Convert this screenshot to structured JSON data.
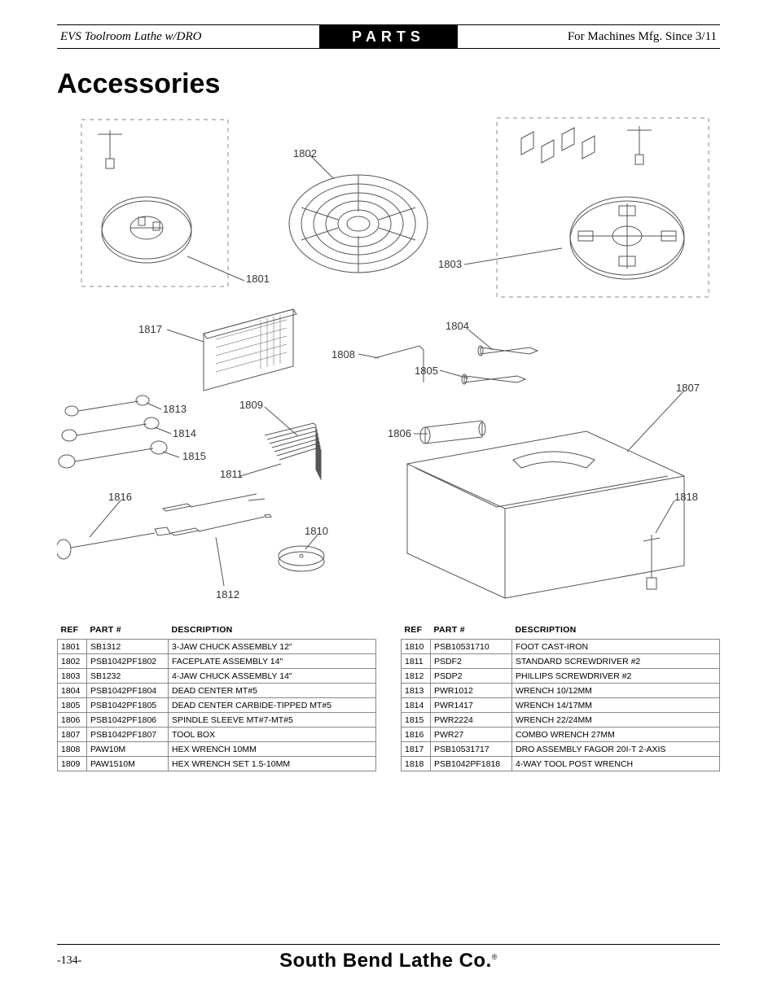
{
  "header": {
    "left": "EVS Toolroom Lathe w/DRO",
    "center": "PARTS",
    "right": "For Machines Mfg. Since 3/11"
  },
  "title": "Accessories",
  "callouts": {
    "c1801": "1801",
    "c1802": "1802",
    "c1803": "1803",
    "c1804": "1804",
    "c1805": "1805",
    "c1806": "1806",
    "c1807": "1807",
    "c1808": "1808",
    "c1809": "1809",
    "c1810": "1810",
    "c1811": "1811",
    "c1812": "1812",
    "c1813": "1813",
    "c1814": "1814",
    "c1815": "1815",
    "c1816": "1816",
    "c1817": "1817",
    "c1818": "1818"
  },
  "table_headers": {
    "ref": "REF",
    "part": "PART #",
    "desc": "DESCRIPTION"
  },
  "left_table": [
    {
      "ref": "1801",
      "part": "SB1312",
      "desc": "3-JAW CHUCK ASSEMBLY 12\""
    },
    {
      "ref": "1802",
      "part": "PSB1042PF1802",
      "desc": "FACEPLATE ASSEMBLY 14\""
    },
    {
      "ref": "1803",
      "part": "SB1232",
      "desc": "4-JAW CHUCK ASSEMBLY 14\""
    },
    {
      "ref": "1804",
      "part": "PSB1042PF1804",
      "desc": "DEAD CENTER MT#5"
    },
    {
      "ref": "1805",
      "part": "PSB1042PF1805",
      "desc": "DEAD CENTER CARBIDE-TIPPED MT#5"
    },
    {
      "ref": "1806",
      "part": "PSB1042PF1806",
      "desc": "SPINDLE SLEEVE MT#7-MT#5"
    },
    {
      "ref": "1807",
      "part": "PSB1042PF1807",
      "desc": "TOOL BOX"
    },
    {
      "ref": "1808",
      "part": "PAW10M",
      "desc": "HEX WRENCH 10MM"
    },
    {
      "ref": "1809",
      "part": "PAW1510M",
      "desc": "HEX WRENCH SET 1.5-10MM"
    }
  ],
  "right_table": [
    {
      "ref": "1810",
      "part": "PSB10531710",
      "desc": "FOOT CAST-IRON"
    },
    {
      "ref": "1811",
      "part": "PSDF2",
      "desc": "STANDARD SCREWDRIVER #2"
    },
    {
      "ref": "1812",
      "part": "PSDP2",
      "desc": "PHILLIPS SCREWDRIVER #2"
    },
    {
      "ref": "1813",
      "part": "PWR1012",
      "desc": "WRENCH 10/12MM"
    },
    {
      "ref": "1814",
      "part": "PWR1417",
      "desc": "WRENCH 14/17MM"
    },
    {
      "ref": "1815",
      "part": "PWR2224",
      "desc": "WRENCH 22/24MM"
    },
    {
      "ref": "1816",
      "part": "PWR27",
      "desc": "COMBO WRENCH 27MM"
    },
    {
      "ref": "1817",
      "part": "PSB10531717",
      "desc": "DRO ASSEMBLY FAGOR 20I-T 2-AXIS"
    },
    {
      "ref": "1818",
      "part": "PSB1042PF1818",
      "desc": "4-WAY TOOL POST WRENCH"
    }
  ],
  "footer": {
    "page": "-134-",
    "brand": "South Bend Lathe Co.",
    "rmark": "®"
  },
  "colors": {
    "stroke": "#555555",
    "dashed": "#888888",
    "text": "#000000"
  }
}
